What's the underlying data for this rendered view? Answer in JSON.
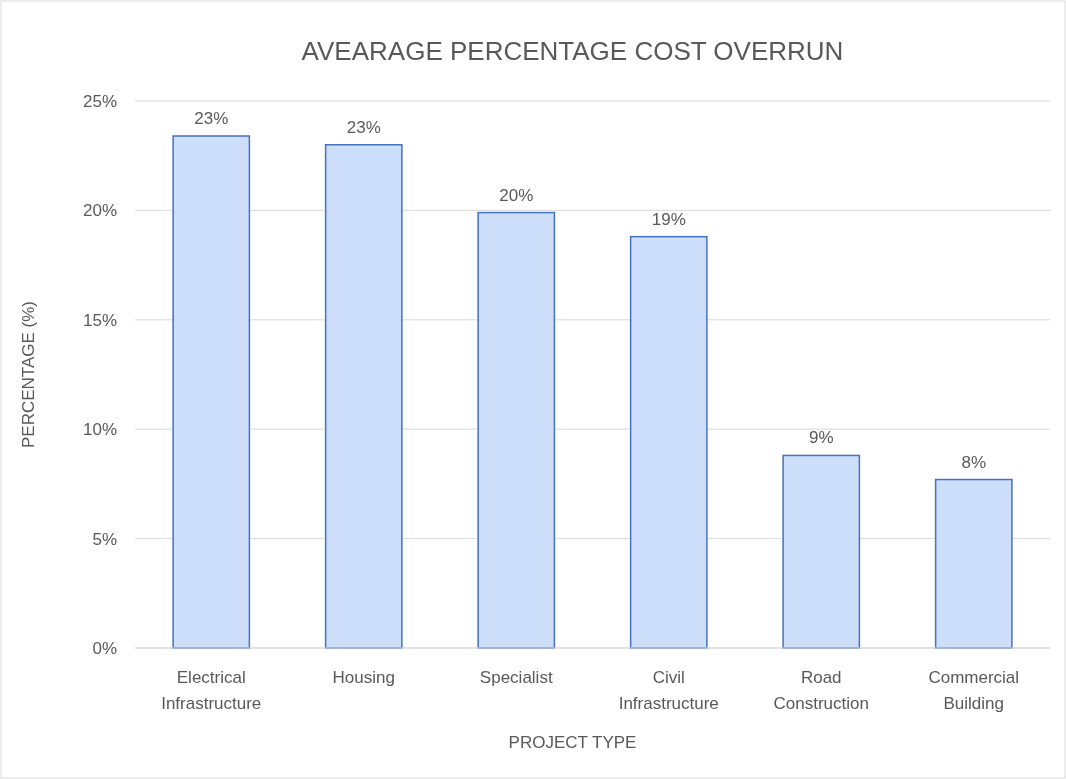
{
  "chart_data": {
    "type": "bar",
    "title": "AVEARAGE PERCENTAGE COST OVERRUN",
    "xlabel": "PROJECT TYPE",
    "ylabel": "PERCENTAGE (%)",
    "categories": [
      "Electrical Infrastructure",
      "Housing",
      "Specialist",
      "Civil Infrastructure",
      "Road Construction",
      "Commercial Building"
    ],
    "values": [
      23.4,
      23.0,
      19.9,
      18.8,
      8.8,
      7.7
    ],
    "value_labels": [
      "23%",
      "23%",
      "20%",
      "19%",
      "9%",
      "8%"
    ],
    "color": "#cddefb",
    "ylim": [
      0,
      25
    ],
    "yticks": [
      {
        "value": 0,
        "label": "0%"
      },
      {
        "value": 5,
        "label": "5%"
      },
      {
        "value": 10,
        "label": "10%"
      },
      {
        "value": 15,
        "label": "15%"
      },
      {
        "value": 20,
        "label": "20%"
      },
      {
        "value": 25,
        "label": "25%"
      }
    ],
    "grid": "y"
  }
}
